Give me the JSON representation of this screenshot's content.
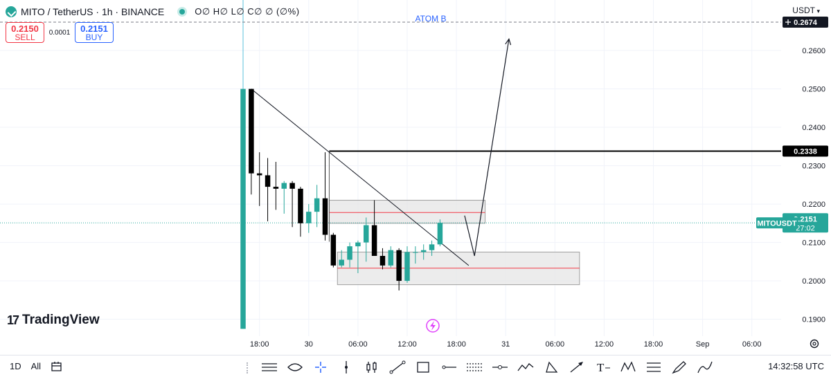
{
  "header": {
    "symbol": "MITO",
    "pair": "TetherUS",
    "interval": "1h",
    "exchange": "BINANCE",
    "title": "MITO / TetherUS · 1h · BINANCE",
    "ohlc": "O∅ H∅ L∅ C∅ ∅ (∅%)"
  },
  "trade": {
    "sell_price": "0.2150",
    "sell_label": "SELL",
    "spread": "0.0001",
    "buy_price": "0.2151",
    "buy_label": "BUY"
  },
  "currency_unit": "USDT",
  "watermark": "TradingView",
  "bottom": {
    "range_1d": "1D",
    "range_all": "All",
    "clock": "14:32:58 UTC"
  },
  "colors": {
    "up": "#26a69a",
    "down": "#000000",
    "zone_fill": "#e6e6e6",
    "zone_line": "#f23645",
    "grid": "#f0f3fa",
    "alert_icon": "#e040fb"
  },
  "chart_data": {
    "type": "candlestick",
    "ylim": [
      0.1856,
      0.271
    ],
    "yticks": [
      "0.1900",
      "0.2000",
      "0.2100",
      "0.2200",
      "0.2300",
      "0.2400",
      "0.2500",
      "0.2600"
    ],
    "xticks": [
      {
        "label": "18:00",
        "slot": 2
      },
      {
        "label": "30",
        "slot": 8
      },
      {
        "label": "06:00",
        "slot": 14
      },
      {
        "label": "12:00",
        "slot": 20
      },
      {
        "label": "18:00",
        "slot": 26
      },
      {
        "label": "31",
        "slot": 32
      },
      {
        "label": "06:00",
        "slot": 38
      },
      {
        "label": "12:00",
        "slot": 44
      },
      {
        "label": "18:00",
        "slot": 50
      },
      {
        "label": "Sep",
        "slot": 56
      },
      {
        "label": "06:00",
        "slot": 62
      }
    ],
    "candles": [
      {
        "o": 0.1875,
        "h": 0.25,
        "l": 0.1875,
        "c": 0.25
      },
      {
        "o": 0.25,
        "h": 0.25,
        "l": 0.2225,
        "c": 0.228
      },
      {
        "o": 0.228,
        "h": 0.2335,
        "l": 0.2195,
        "c": 0.2275
      },
      {
        "o": 0.2275,
        "h": 0.232,
        "l": 0.2155,
        "c": 0.2245
      },
      {
        "o": 0.2245,
        "h": 0.231,
        "l": 0.2185,
        "c": 0.224
      },
      {
        "o": 0.224,
        "h": 0.226,
        "l": 0.2175,
        "c": 0.2255
      },
      {
        "o": 0.2255,
        "h": 0.226,
        "l": 0.214,
        "c": 0.224
      },
      {
        "o": 0.224,
        "h": 0.2245,
        "l": 0.2115,
        "c": 0.215
      },
      {
        "o": 0.215,
        "h": 0.22,
        "l": 0.2125,
        "c": 0.218
      },
      {
        "o": 0.218,
        "h": 0.225,
        "l": 0.214,
        "c": 0.2215
      },
      {
        "o": 0.2215,
        "h": 0.2335,
        "l": 0.2105,
        "c": 0.212
      },
      {
        "o": 0.212,
        "h": 0.2125,
        "l": 0.2035,
        "c": 0.204
      },
      {
        "o": 0.204,
        "h": 0.208,
        "l": 0.2035,
        "c": 0.2055
      },
      {
        "o": 0.2055,
        "h": 0.21,
        "l": 0.2035,
        "c": 0.209
      },
      {
        "o": 0.209,
        "h": 0.2105,
        "l": 0.202,
        "c": 0.21
      },
      {
        "o": 0.21,
        "h": 0.2165,
        "l": 0.205,
        "c": 0.2145
      },
      {
        "o": 0.2145,
        "h": 0.221,
        "l": 0.2065,
        "c": 0.2065
      },
      {
        "o": 0.2065,
        "h": 0.2085,
        "l": 0.203,
        "c": 0.204
      },
      {
        "o": 0.204,
        "h": 0.209,
        "l": 0.2035,
        "c": 0.208
      },
      {
        "o": 0.208,
        "h": 0.2085,
        "l": 0.1975,
        "c": 0.2
      },
      {
        "o": 0.2,
        "h": 0.209,
        "l": 0.1995,
        "c": 0.2075
      },
      {
        "o": 0.2075,
        "h": 0.209,
        "l": 0.2045,
        "c": 0.2075
      },
      {
        "o": 0.2075,
        "h": 0.2095,
        "l": 0.2055,
        "c": 0.208
      },
      {
        "o": 0.208,
        "h": 0.2105,
        "l": 0.2065,
        "c": 0.2095
      },
      {
        "o": 0.2095,
        "h": 0.216,
        "l": 0.209,
        "c": 0.2151
      }
    ],
    "zones": [
      {
        "name": "upper-zone",
        "from_slot": 10.5,
        "to_slot": 29.5,
        "top": 0.221,
        "bottom": 0.215,
        "mid": 0.2178
      },
      {
        "name": "lower-zone",
        "from_slot": 11.5,
        "to_slot": 41.0,
        "top": 0.2075,
        "bottom": 0.199,
        "mid": 0.2033
      }
    ],
    "horizontal_level": {
      "value": 0.2338,
      "label": "0.2338",
      "from_slot": 10.5
    },
    "dashed_level": {
      "value": 0.2674,
      "label": "0.2674"
    },
    "last_price": {
      "value": 0.2151,
      "symbol_label": "MITOUSDT",
      "price_label": "0.2151",
      "countdown": "27:02"
    },
    "trendline": {
      "from_slot": 1,
      "from": 0.25,
      "to_slot": 27.5,
      "to": 0.204
    },
    "projection": [
      {
        "slot": 27.0,
        "value": 0.217
      },
      {
        "slot": 28.2,
        "value": 0.2065
      },
      {
        "slot": 32.4,
        "value": 0.263
      }
    ],
    "annotation": "ATOM B"
  }
}
